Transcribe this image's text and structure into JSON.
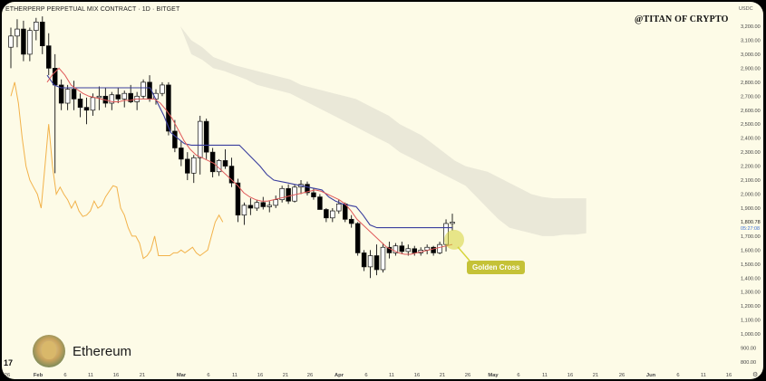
{
  "header": {
    "title": "ETHERPERP PERPETUAL MIX CONTRACT · 1D · BITGET",
    "watermark": "@TITAN OF CRYPTO",
    "currency": "USDC"
  },
  "badge": {
    "label": "Ethereum"
  },
  "annotation": {
    "label": "Golden Cross"
  },
  "colors": {
    "background": "#fdfbe7",
    "bull": "#ffffff",
    "bear": "#000000",
    "tenkan": "#e05a5a",
    "kijun": "#3b3f9e",
    "chikou": "#f2b24a",
    "cloud": "#e3e1d3",
    "golden": "#d6d43a"
  },
  "chart_data": {
    "type": "candlestick",
    "title": "ETHERPERP PERPETUAL MIX CONTRACT · 1D · BITGET",
    "y_axis_labels": [
      "3,200.00",
      "3,100.00",
      "3,000.00",
      "2,900.00",
      "2,800.00",
      "2,700.00",
      "2,600.00",
      "2,500.00",
      "2,400.00",
      "2,300.00",
      "2,200.00",
      "2,100.00",
      "2,000.00",
      "1,900.00",
      "1,800.78",
      "1,700.00",
      "1,600.00",
      "1,500.00",
      "1,400.00",
      "1,300.00",
      "1,200.00",
      "1,100.00",
      "1,000.00",
      "900.00",
      "800.00"
    ],
    "price_tag": "1,800.78",
    "countdown": "05:27:08",
    "x_axis_labels": [
      "26",
      "Feb",
      "6",
      "11",
      "16",
      "21",
      "Mar",
      "6",
      "11",
      "16",
      "21",
      "26",
      "Apr",
      "6",
      "11",
      "16",
      "21",
      "26",
      "May",
      "6",
      "11",
      "16",
      "21",
      "26",
      "Jun",
      "6",
      "11",
      "16"
    ],
    "ylim": [
      800,
      3250
    ],
    "candles": [
      [
        3050,
        3190,
        2900,
        3130
      ],
      [
        3130,
        3250,
        3050,
        3180
      ],
      [
        3180,
        3240,
        2950,
        3000
      ],
      [
        3000,
        3190,
        2950,
        3170
      ],
      [
        3170,
        3260,
        3100,
        3230
      ],
      [
        3230,
        3270,
        3000,
        3060
      ],
      [
        3060,
        3150,
        2850,
        2900
      ],
      [
        2900,
        3000,
        2150,
        2780
      ],
      [
        2780,
        2820,
        2600,
        2650
      ],
      [
        2650,
        2780,
        2600,
        2750
      ],
      [
        2750,
        2810,
        2600,
        2680
      ],
      [
        2680,
        2720,
        2550,
        2620
      ],
      [
        2620,
        2690,
        2500,
        2600
      ],
      [
        2600,
        2720,
        2560,
        2690
      ],
      [
        2690,
        2770,
        2600,
        2700
      ],
      [
        2700,
        2760,
        2620,
        2650
      ],
      [
        2650,
        2730,
        2600,
        2710
      ],
      [
        2710,
        2760,
        2650,
        2680
      ],
      [
        2680,
        2740,
        2620,
        2720
      ],
      [
        2720,
        2780,
        2650,
        2660
      ],
      [
        2660,
        2730,
        2600,
        2700
      ],
      [
        2700,
        2820,
        2680,
        2800
      ],
      [
        2800,
        2850,
        2660,
        2680
      ],
      [
        2680,
        2750,
        2640,
        2720
      ],
      [
        2720,
        2800,
        2700,
        2780
      ],
      [
        2780,
        2800,
        2420,
        2450
      ],
      [
        2450,
        2530,
        2300,
        2330
      ],
      [
        2330,
        2380,
        2200,
        2250
      ],
      [
        2250,
        2300,
        2100,
        2150
      ],
      [
        2150,
        2280,
        2080,
        2260
      ],
      [
        2260,
        2560,
        2140,
        2520
      ],
      [
        2520,
        2540,
        2250,
        2300
      ],
      [
        2300,
        2330,
        2120,
        2160
      ],
      [
        2160,
        2250,
        2130,
        2240
      ],
      [
        2240,
        2320,
        2180,
        2200
      ],
      [
        2200,
        2260,
        2050,
        2080
      ],
      [
        2080,
        2110,
        1800,
        1850
      ],
      [
        1850,
        1940,
        1780,
        1920
      ],
      [
        1920,
        1970,
        1850,
        1900
      ],
      [
        1900,
        1960,
        1880,
        1940
      ],
      [
        1940,
        1980,
        1890,
        1910
      ],
      [
        1910,
        1950,
        1870,
        1920
      ],
      [
        1920,
        1990,
        1900,
        1960
      ],
      [
        1960,
        2060,
        1940,
        2040
      ],
      [
        2040,
        2070,
        1930,
        1950
      ],
      [
        1950,
        2070,
        1940,
        2050
      ],
      [
        2050,
        2100,
        2000,
        2070
      ],
      [
        2070,
        2090,
        1990,
        2010
      ],
      [
        2010,
        2040,
        1960,
        1980
      ],
      [
        1980,
        2000,
        1900,
        1890
      ],
      [
        1890,
        1900,
        1800,
        1830
      ],
      [
        1830,
        1900,
        1800,
        1880
      ],
      [
        1880,
        1960,
        1860,
        1930
      ],
      [
        1930,
        1940,
        1800,
        1820
      ],
      [
        1820,
        1850,
        1760,
        1790
      ],
      [
        1790,
        1800,
        1560,
        1580
      ],
      [
        1580,
        1600,
        1450,
        1480
      ],
      [
        1480,
        1600,
        1400,
        1560
      ],
      [
        1560,
        1640,
        1420,
        1460
      ],
      [
        1460,
        1650,
        1440,
        1620
      ],
      [
        1620,
        1660,
        1540,
        1580
      ],
      [
        1580,
        1650,
        1560,
        1630
      ],
      [
        1630,
        1660,
        1570,
        1590
      ],
      [
        1590,
        1640,
        1560,
        1610
      ],
      [
        1610,
        1630,
        1560,
        1580
      ],
      [
        1580,
        1620,
        1560,
        1600
      ],
      [
        1600,
        1640,
        1570,
        1620
      ],
      [
        1620,
        1630,
        1560,
        1580
      ],
      [
        1580,
        1660,
        1570,
        1640
      ],
      [
        1640,
        1820,
        1590,
        1790
      ],
      [
        1790,
        1860,
        1740,
        1800
      ]
    ],
    "tenkan": [
      2800,
      2860,
      2900,
      2850,
      2780,
      2750,
      2720,
      2700,
      2690,
      2680,
      2670,
      2660,
      2660,
      2670,
      2670,
      2680,
      2680,
      2680,
      2680,
      2650,
      2600,
      2540,
      2460,
      2380,
      2320,
      2280,
      2260,
      2240,
      2220,
      2180,
      2140,
      2100,
      2060,
      2010,
      1980,
      1960,
      1950,
      1950,
      1960,
      1970,
      1980,
      1990,
      2000,
      2010,
      2020,
      2030,
      2020,
      2000,
      1980,
      1960,
      1930,
      1880,
      1820,
      1780,
      1740,
      1700,
      1660,
      1620,
      1600,
      1580,
      1570,
      1570,
      1580,
      1590,
      1600,
      1610,
      1620,
      1630,
      1640
    ],
    "kijun": [
      2850,
      2780,
      2760,
      2760,
      2760,
      2760,
      2760,
      2760,
      2760,
      2760,
      2760,
      2760,
      2760,
      2760,
      2760,
      2760,
      2660,
      2560,
      2440,
      2400,
      2360,
      2350,
      2350,
      2350,
      2350,
      2350,
      2350,
      2350,
      2350,
      2300,
      2250,
      2200,
      2140,
      2100,
      2090,
      2080,
      2070,
      2060,
      2050,
      2040,
      2030,
      1980,
      1950,
      1930,
      1920,
      1910,
      1850,
      1780,
      1760,
      1760,
      1760,
      1760,
      1760,
      1760,
      1760,
      1760,
      1760,
      1760,
      1760,
      1760
    ],
    "chikou": [
      2700,
      2800,
      2650,
      2400,
      2200,
      2100,
      2050,
      2000,
      1900,
      2200,
      2500,
      2200,
      2000,
      2050,
      2000,
      1960,
      1900,
      1950,
      1880,
      1840,
      1850,
      1880,
      1950,
      1900,
      1920,
      1980,
      2020,
      2060,
      2050,
      1900,
      1850,
      1760,
      1700,
      1700,
      1650,
      1540,
      1560,
      1600,
      1700,
      1560,
      1560,
      1560,
      1560,
      1580,
      1580,
      1600,
      1580,
      1600,
      1620,
      1580,
      1560,
      1580,
      1600,
      1700,
      1800,
      1850,
      1800
    ],
    "cloud_upper": [
      3200,
      3100,
      3050,
      2980,
      2950,
      2920,
      2900,
      2880,
      2860,
      2840,
      2820,
      2780,
      2760,
      2740,
      2720,
      2700,
      2680,
      2640,
      2600,
      2560,
      2500,
      2460,
      2420,
      2360,
      2300,
      2240,
      2200,
      2180,
      2160,
      2120,
      2080,
      2040,
      2000,
      1980,
      1970,
      1970,
      1970,
      1970
    ],
    "cloud_lower": [
      3200,
      3000,
      2960,
      2900,
      2880,
      2850,
      2820,
      2780,
      2760,
      2740,
      2720,
      2680,
      2640,
      2600,
      2560,
      2520,
      2480,
      2440,
      2400,
      2360,
      2300,
      2260,
      2220,
      2180,
      2140,
      2100,
      2060,
      1980,
      1900,
      1820,
      1760,
      1740,
      1720,
      1700,
      1700,
      1710,
      1710,
      1720
    ],
    "events": [
      {
        "label": "Golden Cross",
        "price": 1700
      }
    ]
  }
}
